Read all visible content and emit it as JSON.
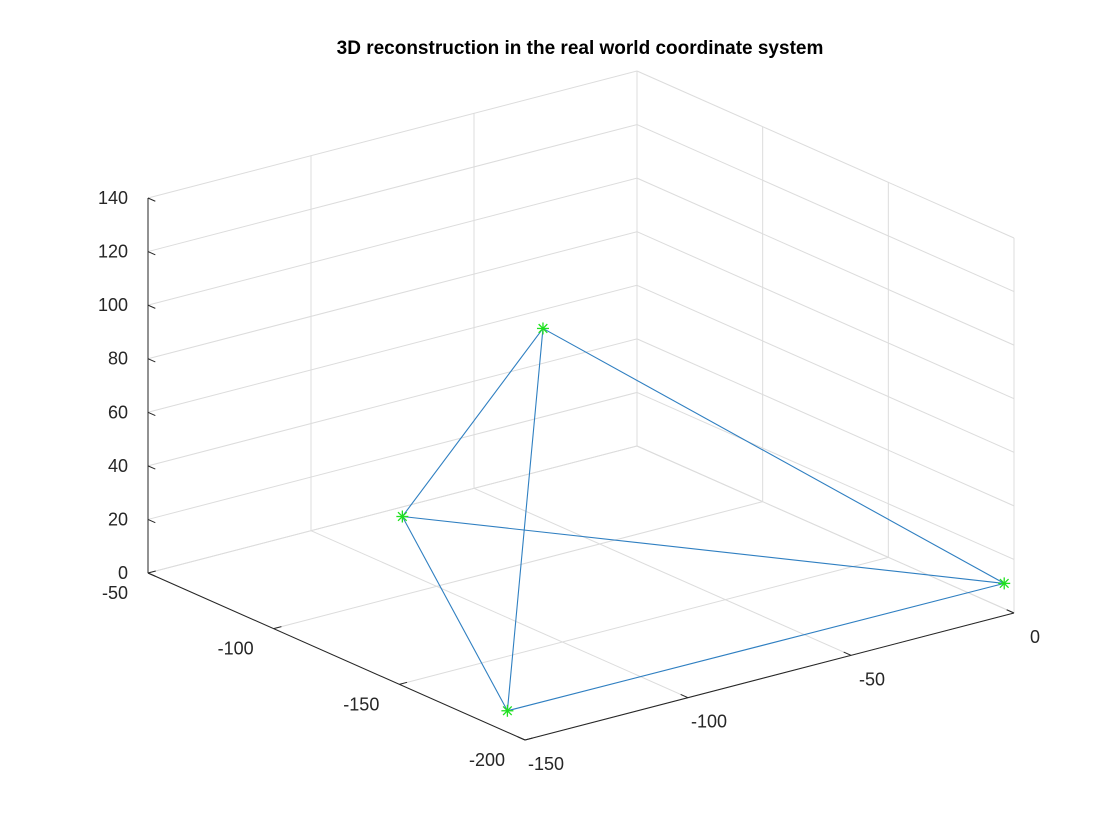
{
  "chart_data": {
    "type": "scatter",
    "title": "3D reconstruction in the real world coordinate system",
    "xlabel": "",
    "ylabel": "",
    "zlabel": "",
    "grid": true,
    "legend": false,
    "xlim": [
      -150,
      0
    ],
    "ylim": [
      -200,
      -50
    ],
    "zlim": [
      0,
      140
    ],
    "xticks": [
      -150,
      -100,
      -50,
      0
    ],
    "yticks": [
      -200,
      -150,
      -100,
      -50
    ],
    "zticks": [
      0,
      20,
      40,
      60,
      80,
      100,
      120,
      140
    ],
    "points": [
      {
        "x": -3,
        "y": -200,
        "z": 12
      },
      {
        "x": -150,
        "y": -193,
        "z": 8
      },
      {
        "x": -82,
        "y": -63,
        "z": 5
      },
      {
        "x": -99,
        "y": -141,
        "z": 113
      }
    ],
    "edges": [
      [
        0,
        1
      ],
      [
        1,
        2
      ],
      [
        2,
        0
      ],
      [
        3,
        0
      ],
      [
        3,
        1
      ],
      [
        3,
        2
      ]
    ],
    "line_color": "#2f7fc1",
    "marker_color": "#1fe01f",
    "marker": "asterisk"
  }
}
